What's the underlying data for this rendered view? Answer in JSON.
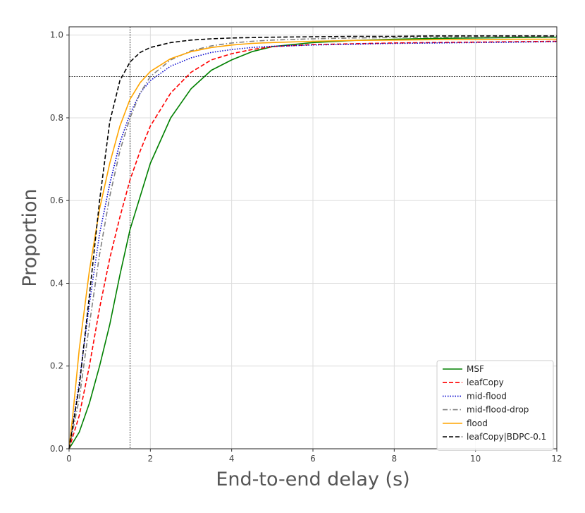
{
  "chart_data": {
    "type": "line",
    "title": "",
    "xlabel": "End-to-end delay (s)",
    "ylabel": "Proportion",
    "xlim": [
      0,
      12
    ],
    "ylim": [
      0,
      1.02
    ],
    "x_ticks": [
      "0",
      "2",
      "4",
      "6",
      "8",
      "10",
      "12"
    ],
    "y_ticks": [
      "0.0",
      "0.2",
      "0.4",
      "0.6",
      "0.8",
      "1.0"
    ],
    "grid": true,
    "legend_position": "lower-right",
    "reference_lines": {
      "x": 1.5,
      "y": 0.9
    },
    "series": [
      {
        "name": "MSF",
        "color": "#008000",
        "dash": "solid",
        "points": [
          [
            0,
            0
          ],
          [
            0.25,
            0.04
          ],
          [
            0.5,
            0.11
          ],
          [
            0.75,
            0.2
          ],
          [
            1,
            0.3
          ],
          [
            1.25,
            0.42
          ],
          [
            1.5,
            0.53
          ],
          [
            1.75,
            0.61
          ],
          [
            2,
            0.69
          ],
          [
            2.5,
            0.8
          ],
          [
            3,
            0.87
          ],
          [
            3.5,
            0.915
          ],
          [
            4,
            0.94
          ],
          [
            4.5,
            0.96
          ],
          [
            5,
            0.972
          ],
          [
            6,
            0.982
          ],
          [
            7,
            0.987
          ],
          [
            8,
            0.99
          ],
          [
            9,
            0.992
          ],
          [
            10,
            0.993
          ],
          [
            11,
            0.994
          ],
          [
            12,
            0.995
          ]
        ]
      },
      {
        "name": "leafCopy",
        "color": "#ff0000",
        "dash": "dashed",
        "points": [
          [
            0,
            0
          ],
          [
            0.25,
            0.08
          ],
          [
            0.5,
            0.2
          ],
          [
            0.75,
            0.34
          ],
          [
            1,
            0.46
          ],
          [
            1.25,
            0.56
          ],
          [
            1.5,
            0.65
          ],
          [
            1.75,
            0.72
          ],
          [
            2,
            0.78
          ],
          [
            2.5,
            0.86
          ],
          [
            3,
            0.91
          ],
          [
            3.5,
            0.94
          ],
          [
            4,
            0.955
          ],
          [
            4.5,
            0.965
          ],
          [
            5,
            0.972
          ],
          [
            6,
            0.977
          ],
          [
            7,
            0.979
          ],
          [
            8,
            0.981
          ],
          [
            9,
            0.982
          ],
          [
            10,
            0.983
          ],
          [
            11,
            0.984
          ],
          [
            12,
            0.985
          ]
        ]
      },
      {
        "name": "mid-flood",
        "color": "#0000cd",
        "dash": "dotted",
        "points": [
          [
            0,
            0
          ],
          [
            0.25,
            0.16
          ],
          [
            0.5,
            0.35
          ],
          [
            0.75,
            0.52
          ],
          [
            1,
            0.64
          ],
          [
            1.25,
            0.74
          ],
          [
            1.5,
            0.81
          ],
          [
            1.75,
            0.86
          ],
          [
            2,
            0.89
          ],
          [
            2.5,
            0.925
          ],
          [
            3,
            0.945
          ],
          [
            3.5,
            0.958
          ],
          [
            4,
            0.965
          ],
          [
            4.5,
            0.97
          ],
          [
            5,
            0.973
          ],
          [
            6,
            0.976
          ],
          [
            7,
            0.978
          ],
          [
            8,
            0.98
          ],
          [
            9,
            0.981
          ],
          [
            10,
            0.982
          ],
          [
            11,
            0.983
          ],
          [
            12,
            0.984
          ]
        ]
      },
      {
        "name": "mid-flood-drop",
        "color": "#808080",
        "dash": "dashdot",
        "points": [
          [
            0,
            0
          ],
          [
            0.25,
            0.12
          ],
          [
            0.5,
            0.3
          ],
          [
            0.75,
            0.47
          ],
          [
            1,
            0.61
          ],
          [
            1.25,
            0.72
          ],
          [
            1.5,
            0.8
          ],
          [
            1.75,
            0.86
          ],
          [
            2,
            0.9
          ],
          [
            2.5,
            0.94
          ],
          [
            3,
            0.962
          ],
          [
            3.5,
            0.974
          ],
          [
            4,
            0.981
          ],
          [
            4.5,
            0.985
          ],
          [
            5,
            0.988
          ],
          [
            6,
            0.991
          ],
          [
            7,
            0.993
          ],
          [
            8,
            0.994
          ],
          [
            9,
            0.995
          ],
          [
            10,
            0.995
          ],
          [
            11,
            0.996
          ],
          [
            12,
            0.996
          ]
        ]
      },
      {
        "name": "flood",
        "color": "#ffa500",
        "dash": "solid",
        "points": [
          [
            0,
            0
          ],
          [
            0.1,
            0.09
          ],
          [
            0.25,
            0.24
          ],
          [
            0.5,
            0.43
          ],
          [
            0.75,
            0.58
          ],
          [
            1,
            0.69
          ],
          [
            1.25,
            0.78
          ],
          [
            1.5,
            0.845
          ],
          [
            1.75,
            0.885
          ],
          [
            2,
            0.912
          ],
          [
            2.5,
            0.943
          ],
          [
            3,
            0.96
          ],
          [
            3.5,
            0.97
          ],
          [
            4,
            0.976
          ],
          [
            4.5,
            0.98
          ],
          [
            5,
            0.982
          ],
          [
            6,
            0.985
          ],
          [
            7,
            0.987
          ],
          [
            8,
            0.988
          ],
          [
            9,
            0.989
          ],
          [
            10,
            0.989
          ],
          [
            11,
            0.99
          ],
          [
            12,
            0.99
          ]
        ]
      },
      {
        "name": "leafCopy|BDPC-0.1",
        "color": "#000000",
        "dash": "dashed",
        "points": [
          [
            0,
            0
          ],
          [
            0.25,
            0.15
          ],
          [
            0.5,
            0.37
          ],
          [
            0.75,
            0.6
          ],
          [
            1,
            0.79
          ],
          [
            1.25,
            0.89
          ],
          [
            1.5,
            0.935
          ],
          [
            1.75,
            0.958
          ],
          [
            2,
            0.97
          ],
          [
            2.5,
            0.982
          ],
          [
            3,
            0.988
          ],
          [
            3.5,
            0.991
          ],
          [
            4,
            0.993
          ],
          [
            5,
            0.995
          ],
          [
            6,
            0.996
          ],
          [
            7,
            0.997
          ],
          [
            8,
            0.997
          ],
          [
            9,
            0.998
          ],
          [
            10,
            0.998
          ],
          [
            11,
            0.998
          ],
          [
            12,
            0.998
          ]
        ]
      }
    ]
  }
}
